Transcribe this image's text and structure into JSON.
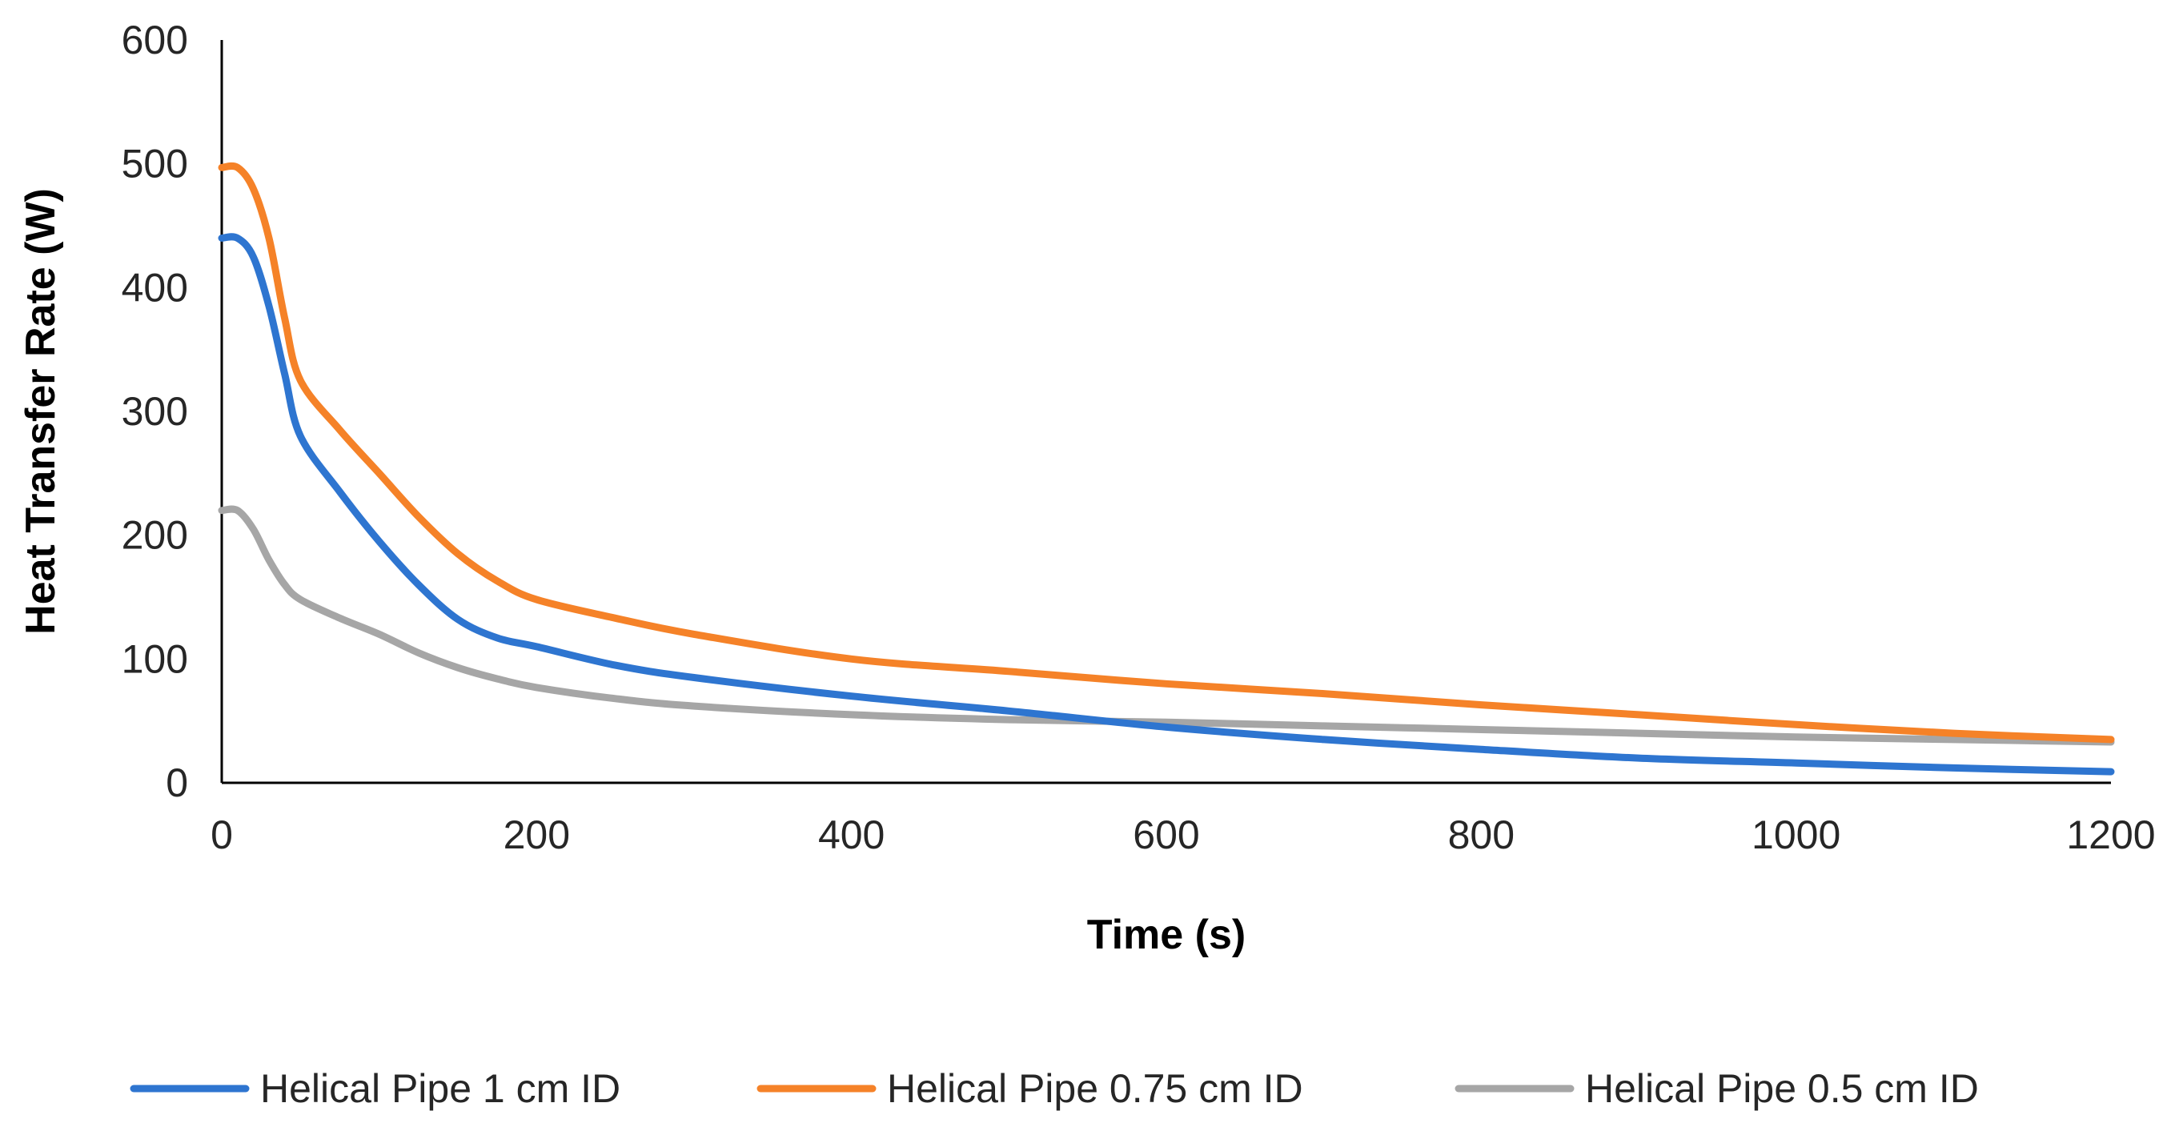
{
  "chart_data": {
    "type": "line",
    "title": "",
    "xlabel": "Time (s)",
    "ylabel": "Heat Transfer Rate (W)",
    "xlim": [
      0,
      1200
    ],
    "ylim": [
      0,
      600
    ],
    "xticks": [
      0,
      200,
      400,
      600,
      800,
      1000,
      1200
    ],
    "yticks": [
      0,
      100,
      200,
      300,
      400,
      500,
      600
    ],
    "xtick_labels": [
      "0",
      "200",
      "400",
      "600",
      "800",
      "1000",
      "1200"
    ],
    "ytick_labels": [
      "0",
      "100",
      "200",
      "300",
      "400",
      "500",
      "600"
    ],
    "grid": false,
    "legend_position": "bottom",
    "series": [
      {
        "name": "Helical Pipe 1 cm ID",
        "color": "#2E75D0",
        "x": [
          0,
          10,
          20,
          30,
          40,
          50,
          75,
          100,
          125,
          150,
          175,
          200,
          250,
          300,
          400,
          500,
          600,
          700,
          800,
          900,
          1000,
          1100,
          1200
        ],
        "y": [
          440,
          440,
          425,
          385,
          330,
          280,
          235,
          195,
          160,
          132,
          117,
          110,
          95,
          85,
          70,
          58,
          45,
          35,
          27,
          20,
          16,
          12,
          9
        ]
      },
      {
        "name": "Helical Pipe 0.75 cm ID",
        "color": "#F58228",
        "x": [
          0,
          10,
          20,
          30,
          40,
          50,
          75,
          100,
          125,
          150,
          175,
          200,
          250,
          300,
          400,
          500,
          600,
          700,
          800,
          900,
          1000,
          1100,
          1200
        ],
        "y": [
          497,
          497,
          480,
          440,
          375,
          325,
          285,
          250,
          215,
          185,
          163,
          148,
          133,
          120,
          100,
          90,
          80,
          72,
          63,
          55,
          47,
          40,
          35
        ]
      },
      {
        "name": "Helical Pipe 0.5 cm ID",
        "color": "#A6A6A6",
        "x": [
          0,
          10,
          20,
          30,
          40,
          50,
          75,
          100,
          125,
          150,
          175,
          200,
          250,
          300,
          400,
          500,
          600,
          700,
          800,
          900,
          1000,
          1100,
          1200
        ],
        "y": [
          220,
          220,
          205,
          180,
          160,
          148,
          133,
          120,
          105,
          93,
          84,
          77,
          68,
          62,
          55,
          51,
          49,
          46,
          43,
          40,
          37,
          35,
          33
        ]
      }
    ]
  }
}
